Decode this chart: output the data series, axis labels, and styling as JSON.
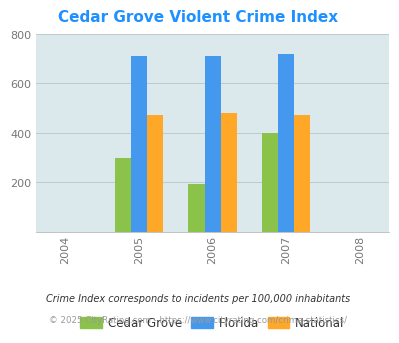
{
  "title": "Cedar Grove Violent Crime Index",
  "title_color": "#1E90FF",
  "years": [
    2004,
    2005,
    2006,
    2007,
    2008
  ],
  "data_years": [
    2005,
    2006,
    2007
  ],
  "cedar_grove": [
    300,
    195,
    400
  ],
  "florida": [
    710,
    710,
    720
  ],
  "national": [
    470,
    480,
    470
  ],
  "colors": {
    "cedar_grove": "#8BC34A",
    "florida": "#4499EE",
    "national": "#FFA726"
  },
  "plot_bg": "#DCE9EC",
  "ylim": [
    0,
    800
  ],
  "yticks": [
    200,
    400,
    600,
    800
  ],
  "legend_labels": [
    "Cedar Grove",
    "Florida",
    "National"
  ],
  "footnote1": "Crime Index corresponds to incidents per 100,000 inhabitants",
  "footnote2": "© 2025 CityRating.com - https://www.cityrating.com/crime-statistics/",
  "bar_width": 0.22
}
